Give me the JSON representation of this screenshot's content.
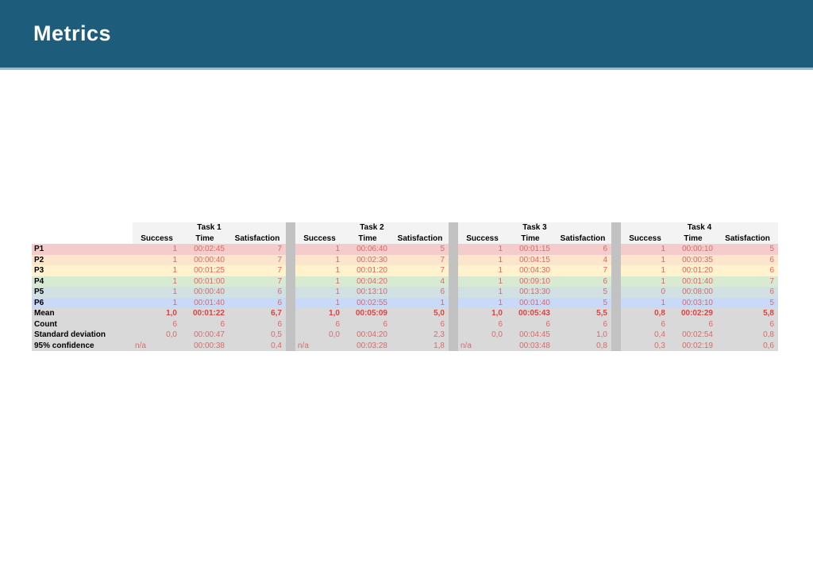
{
  "header": {
    "title": "Metrics"
  },
  "colors": {
    "topbar": "#1e5c7c",
    "topbar_border": "#9fb9c8",
    "header_bg": "#f3f3f3",
    "divider": "#c2c2c2",
    "value_red": "#e06666",
    "mean_red": "#d64545",
    "summary_bg": "#d9d9d9",
    "row_colors": [
      "#f4cccc",
      "#fce5cd",
      "#fff2cc",
      "#d9ead3",
      "#d0e0e3",
      "#c9daf8"
    ]
  },
  "table": {
    "groups": [
      "Task 1",
      "Task 2",
      "Task 3",
      "Task 4"
    ],
    "column_headers": [
      "Success",
      "Time",
      "Satisfaction"
    ],
    "rows": [
      {
        "label": "P1",
        "cells": [
          [
            "1",
            "00:02:45",
            "7"
          ],
          [
            "1",
            "00:06:40",
            "5"
          ],
          [
            "1",
            "00:01:15",
            "6"
          ],
          [
            "1",
            "00:00:10",
            "5"
          ]
        ]
      },
      {
        "label": "P2",
        "cells": [
          [
            "1",
            "00:00:40",
            "7"
          ],
          [
            "1",
            "00:02:30",
            "7"
          ],
          [
            "1",
            "00:04:15",
            "4"
          ],
          [
            "1",
            "00:00:35",
            "6"
          ]
        ]
      },
      {
        "label": "P3",
        "cells": [
          [
            "1",
            "00:01:25",
            "7"
          ],
          [
            "1",
            "00:01:20",
            "7"
          ],
          [
            "1",
            "00:04:30",
            "7"
          ],
          [
            "1",
            "00:01:20",
            "6"
          ]
        ]
      },
      {
        "label": "P4",
        "cells": [
          [
            "1",
            "00:01:00",
            "7"
          ],
          [
            "1",
            "00:04:20",
            "4"
          ],
          [
            "1",
            "00:09:10",
            "6"
          ],
          [
            "1",
            "00:01:40",
            "7"
          ]
        ]
      },
      {
        "label": "P5",
        "cells": [
          [
            "1",
            "00:00:40",
            "6"
          ],
          [
            "1",
            "00:13:10",
            "6"
          ],
          [
            "1",
            "00:13:30",
            "5"
          ],
          [
            "0",
            "00:08:00",
            "6"
          ]
        ]
      },
      {
        "label": "P6",
        "cells": [
          [
            "1",
            "00:01:40",
            "6"
          ],
          [
            "1",
            "00:02:55",
            "1"
          ],
          [
            "1",
            "00:01:40",
            "5"
          ],
          [
            "1",
            "00:03:10",
            "5"
          ]
        ]
      },
      {
        "label": "Mean",
        "mean": true,
        "cells": [
          [
            "1,0",
            "00:01:22",
            "6,7"
          ],
          [
            "1,0",
            "00:05:09",
            "5,0"
          ],
          [
            "1,0",
            "00:05:43",
            "5,5"
          ],
          [
            "0,8",
            "00:02:29",
            "5,8"
          ]
        ]
      },
      {
        "label": "Count",
        "cells": [
          [
            "6",
            "6",
            "6"
          ],
          [
            "6",
            "6",
            "6"
          ],
          [
            "6",
            "6",
            "6"
          ],
          [
            "6",
            "6",
            "6"
          ]
        ]
      },
      {
        "label": "Standard deviation",
        "cells": [
          [
            "0,0",
            "00:00:47",
            "0,5"
          ],
          [
            "0,0",
            "00:04:20",
            "2,3"
          ],
          [
            "0,0",
            "00:04:45",
            "1,0"
          ],
          [
            "0,4",
            "00:02:54",
            "0,8"
          ]
        ]
      },
      {
        "label": "95% confidence",
        "cells": [
          [
            "n/a",
            "00:00:38",
            "0,4"
          ],
          [
            "n/a",
            "00:03:28",
            "1,8"
          ],
          [
            "n/a",
            "00:03:48",
            "0,8"
          ],
          [
            "0,3",
            "00:02:19",
            "0,6"
          ]
        ]
      }
    ]
  }
}
